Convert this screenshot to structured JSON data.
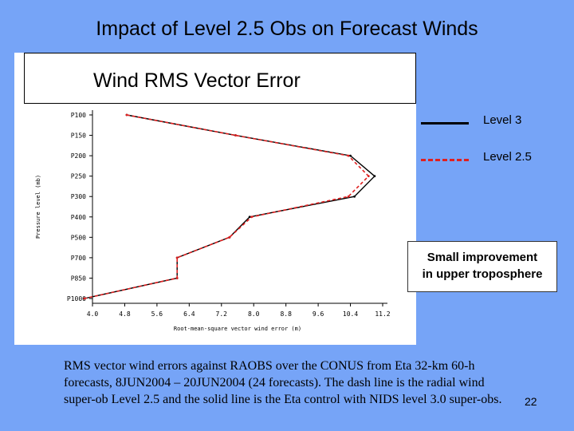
{
  "slide": {
    "title": "Impact of Level 2.5 Obs on Forecast Winds",
    "caption": "RMS vector wind errors against RAOBS over the CONUS from Eta 32-km 60-h forecasts, 8JUN2004 – 20JUN2004 (24 forecasts). The dash line is the radial wind super-ob Level 2.5 and the solid line is the Eta control with NIDS level 3.0 super-obs.",
    "page_number": "22",
    "callout": [
      "Small improvement",
      "in upper troposphere"
    ],
    "background_color": "#76a4f7"
  },
  "chart_data": {
    "type": "line",
    "title": "Wind RMS Vector Error",
    "xlabel": "Root-mean-square vector wind error (m)",
    "ylabel": "Pressure level (mb)",
    "xlim": [
      4.0,
      11.2
    ],
    "xticks": [
      "4.0",
      "4.8",
      "5.6",
      "6.4",
      "7.2",
      "8.0",
      "8.8",
      "9.6",
      "10.4",
      "11.2"
    ],
    "categories": [
      "P100",
      "P150",
      "P200",
      "P250",
      "P300",
      "P400",
      "P500",
      "P700",
      "P850",
      "P1000"
    ],
    "series": [
      {
        "name": "Level 3",
        "style": "solid",
        "color": "#000000",
        "values": [
          4.85,
          7.55,
          10.4,
          11.0,
          10.5,
          7.9,
          7.4,
          6.1,
          6.1,
          3.8
        ]
      },
      {
        "name": "Level 2.5",
        "style": "dashed",
        "color": "#e02020",
        "values": [
          4.85,
          7.55,
          10.35,
          10.85,
          10.35,
          7.95,
          7.4,
          6.1,
          6.1,
          3.8
        ]
      }
    ],
    "legend_position": "right"
  }
}
